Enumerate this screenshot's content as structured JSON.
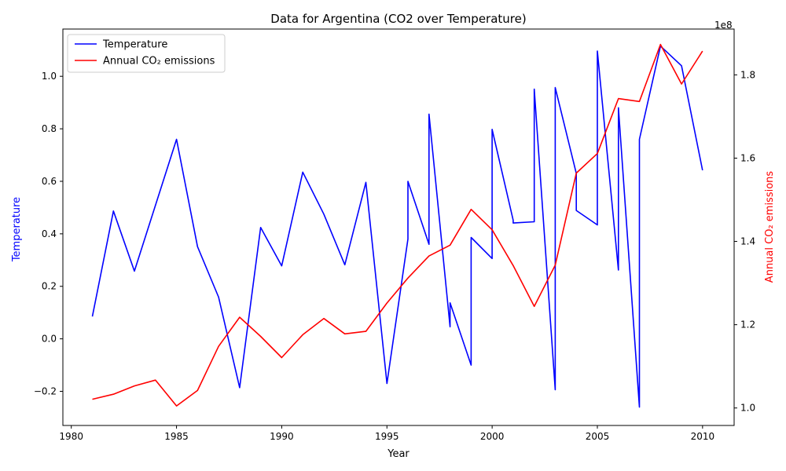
{
  "chart_data": {
    "type": "line",
    "title": "Data for Argentina (CO2 over Temperature)",
    "xlabel": "Year",
    "ylabel_left": "Temperature",
    "ylabel_right": "Annual CO₂ emissions",
    "right_axis_offset_label": "1e8",
    "xlim": [
      1979.6,
      2011.5
    ],
    "ylim_left": [
      -0.33,
      1.18
    ],
    "ylim_right": [
      0.958,
      1.91
    ],
    "x_ticks": [
      1980,
      1985,
      1990,
      1995,
      2000,
      2005,
      2010
    ],
    "y_left_ticks": [
      -0.2,
      0.0,
      0.2,
      0.4,
      0.6,
      0.8,
      1.0
    ],
    "y_right_ticks": [
      1.0,
      1.2,
      1.4,
      1.6,
      1.8
    ],
    "legend_position": "upper left",
    "colors": {
      "temperature": "#0000ff",
      "co2": "#ff0000"
    },
    "series": [
      {
        "name": "Temperature",
        "axis": "left",
        "x": [
          1981,
          1982,
          1983,
          1985,
          1986,
          1987,
          1988,
          1989,
          1990,
          1991,
          1992,
          1993,
          1994,
          1995,
          1996,
          1996,
          1997,
          1997,
          1998,
          1998,
          1999,
          1999,
          2000,
          2000,
          2001,
          2001,
          2002,
          2002,
          2003,
          2003,
          2004,
          2004,
          2005,
          2005,
          2006,
          2006,
          2007,
          2007,
          2008,
          2009,
          2010
        ],
        "y": [
          0.085,
          0.487,
          0.258,
          0.76,
          0.351,
          0.159,
          -0.186,
          0.424,
          0.278,
          0.635,
          0.475,
          0.282,
          0.596,
          -0.17,
          0.38,
          0.6,
          0.36,
          0.856,
          0.046,
          0.137,
          -0.1,
          0.386,
          0.306,
          0.798,
          0.452,
          0.441,
          0.446,
          0.951,
          -0.194,
          0.957,
          0.63,
          0.489,
          0.434,
          1.096,
          0.262,
          0.88,
          -0.26,
          0.76,
          1.115,
          1.04,
          0.642
        ]
      },
      {
        "name": "Annual CO₂ emissions",
        "axis": "right",
        "x": [
          1981,
          1982,
          1983,
          1984,
          1985,
          1986,
          1987,
          1988,
          1989,
          1990,
          1991,
          1992,
          1993,
          1994,
          1995,
          1996,
          1997,
          1998,
          1999,
          2000,
          2001,
          2002,
          2003,
          2004,
          2005,
          2006,
          2007,
          2008,
          2009,
          2010
        ],
        "y": [
          1.021,
          1.033,
          1.053,
          1.067,
          1.005,
          1.042,
          1.148,
          1.218,
          1.172,
          1.121,
          1.176,
          1.215,
          1.178,
          1.184,
          1.252,
          1.312,
          1.365,
          1.391,
          1.477,
          1.428,
          1.342,
          1.244,
          1.343,
          1.564,
          1.611,
          1.743,
          1.736,
          1.873,
          1.778,
          1.857
        ]
      }
    ]
  }
}
